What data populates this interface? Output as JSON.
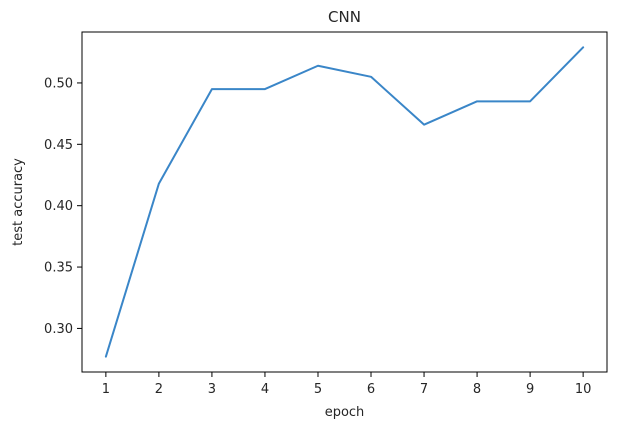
{
  "chart_data": {
    "type": "line",
    "title": "CNN",
    "xlabel": "epoch",
    "ylabel": "test accuracy",
    "x": [
      1,
      2,
      3,
      4,
      5,
      6,
      7,
      8,
      9,
      10
    ],
    "series": [
      {
        "values": [
          0.277,
          0.418,
          0.495,
          0.495,
          0.514,
          0.505,
          0.466,
          0.485,
          0.485,
          0.529
        ],
        "color": "#3a86c8"
      }
    ],
    "xlim": [
      0.55,
      10.45
    ],
    "ylim": [
      0.2645,
      0.5415
    ],
    "xticks": [
      1,
      2,
      3,
      4,
      5,
      6,
      7,
      8,
      9,
      10
    ],
    "xtick_labels": [
      "1",
      "2",
      "3",
      "4",
      "5",
      "6",
      "7",
      "8",
      "9",
      "10"
    ],
    "yticks": [
      0.3,
      0.35,
      0.4,
      0.45,
      0.5
    ],
    "ytick_labels": [
      "0.30",
      "0.35",
      "0.40",
      "0.45",
      "0.50"
    ],
    "grid": false,
    "legend": "none"
  }
}
